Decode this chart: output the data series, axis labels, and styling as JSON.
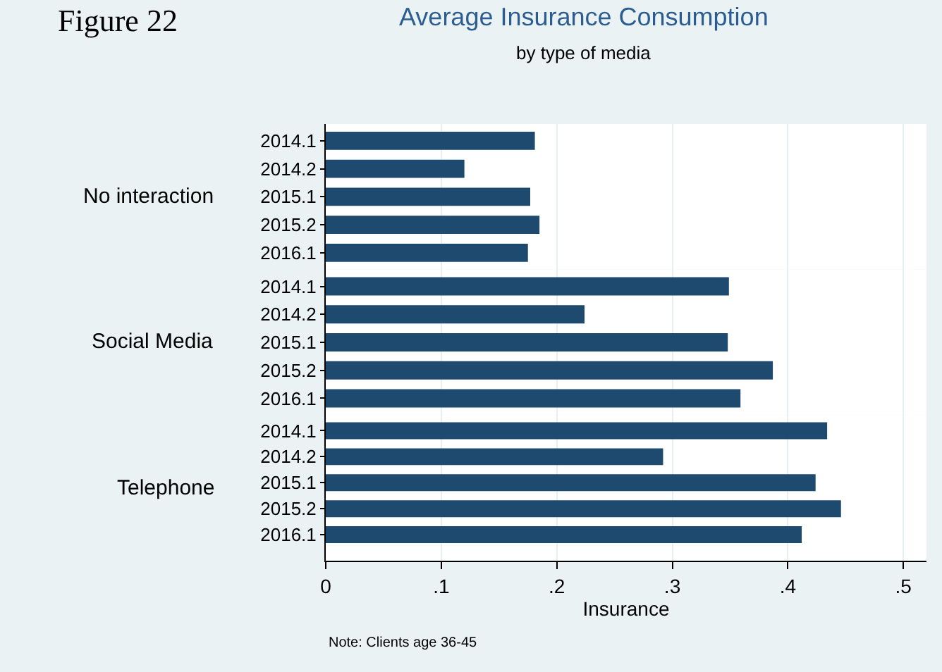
{
  "chart_data": [
    {
      "type": "bar",
      "orientation": "horizontal",
      "title": "Average Insurance Consumption",
      "subtitle": "by type of media",
      "annotations": [
        "Figure 22"
      ],
      "ylabel": "No interaction",
      "categories": [
        "2014.1",
        "2014.2",
        "2015.1",
        "2015.2",
        "2016.1"
      ],
      "values": [
        0.181,
        0.12,
        0.177,
        0.185,
        0.175
      ],
      "color": "#1f4a70",
      "xlim": [
        0,
        0.52
      ],
      "grid": "x",
      "tick_labels": "y"
    },
    {
      "type": "bar",
      "orientation": "horizontal",
      "ylabel": "Social Media",
      "categories": [
        "2014.1",
        "2014.2",
        "2015.1",
        "2015.2",
        "2016.1"
      ],
      "values": [
        0.349,
        0.224,
        0.348,
        0.387,
        0.359
      ],
      "color": "#1f4a70",
      "xlim": [
        0,
        0.52
      ],
      "grid": "x",
      "tick_labels": "y"
    },
    {
      "type": "bar",
      "orientation": "horizontal",
      "ylabel": "Telephone",
      "xlabel": "Insurance",
      "annotations": [
        "Note: Clients age 36-45"
      ],
      "categories": [
        "2014.1",
        "2014.2",
        "2015.1",
        "2015.2",
        "2016.1"
      ],
      "values": [
        0.434,
        0.292,
        0.424,
        0.446,
        0.412
      ],
      "color": "#1f4a70",
      "xlim": [
        0,
        0.52
      ],
      "xticks": [
        0,
        {
          "value": 0.1,
          "label": ".1"
        },
        {
          "value": 0.2,
          "label": ".2"
        },
        {
          "value": 0.3,
          "label": ".3"
        },
        {
          "value": 0.4,
          "label": ".4"
        },
        {
          "value": 0.5,
          "label": ".5"
        }
      ],
      "grid": "x"
    }
  ]
}
